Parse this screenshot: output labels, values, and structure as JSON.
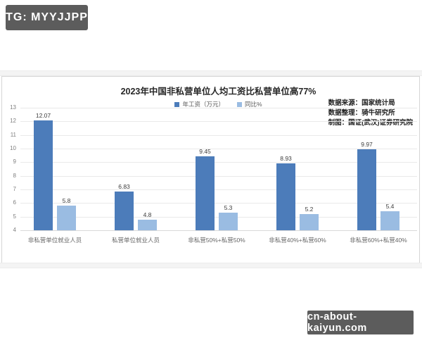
{
  "watermarks": {
    "top_badge": "TG: MYYJJPP",
    "bottom_badge": "cn-about-kaiyun.com"
  },
  "source_lines": [
    "数据来源：国家统计局",
    "数据整理：骑牛研究所",
    "制图：国证(武汉)证券研究院"
  ],
  "colors": {
    "badge_bg": "#5c5c5c",
    "series_primary": "#4c7cba",
    "series_secondary": "#9abce2",
    "gridline": "#e9e9e9"
  },
  "chart_data": {
    "type": "bar",
    "title": "2023年中国非私营单位人均工资比私营单位高77%",
    "categories": [
      "非私营单位就业人员",
      "私营单位就业人员",
      "非私营50%+私营50%",
      "非私营40%+私营60%",
      "非私营60%+私营40%"
    ],
    "series": [
      {
        "name": "年工资（万元）",
        "color": "#4c7cba",
        "values": [
          12.07,
          6.83,
          9.45,
          8.93,
          9.97
        ]
      },
      {
        "name": "同比%",
        "color": "#9abce2",
        "values": [
          5.8,
          4.8,
          5.3,
          5.2,
          5.4
        ]
      }
    ],
    "ylim": [
      4,
      13
    ],
    "ytick_step": 1,
    "grid": true,
    "legend_position": "top-center",
    "xlabel": "",
    "ylabel": ""
  }
}
